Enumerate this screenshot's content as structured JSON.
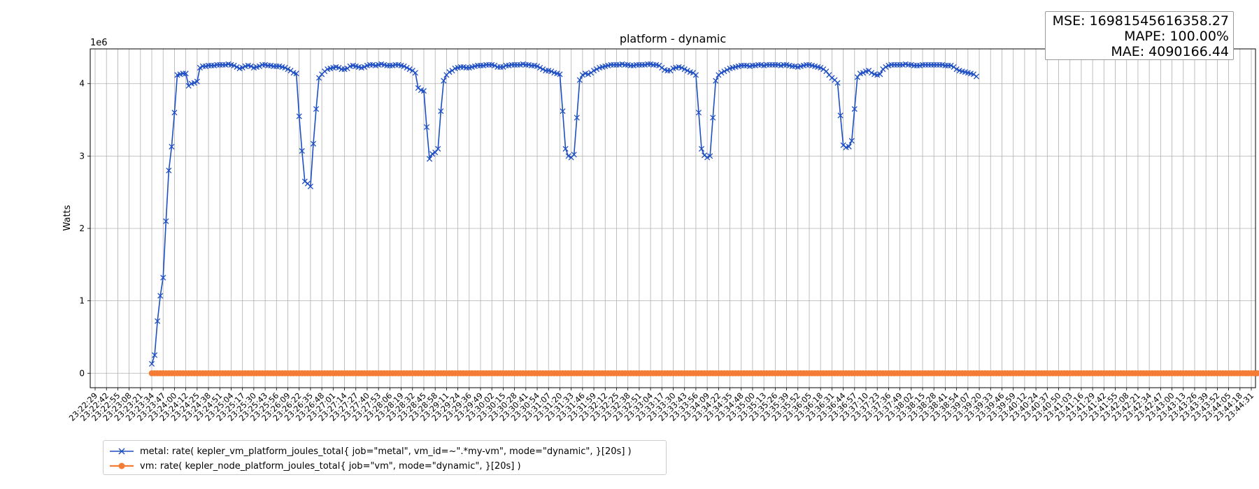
{
  "chart_data": {
    "type": "line",
    "title": "platform - dynamic",
    "xlabel": "",
    "ylabel": "Watts",
    "y_scale_label": "1e6",
    "y_multiplier": 1000000,
    "ylim": [
      -0.2,
      4.48
    ],
    "yticks": [
      0,
      1,
      2,
      3,
      4
    ],
    "grid": true,
    "legend_position": "lower-left, below plot",
    "x_tick_labels": [
      "23:22:29",
      "23:22:42",
      "23:22:55",
      "23:23:08",
      "23:23:21",
      "23:23:34",
      "23:23:47",
      "23:24:00",
      "23:24:12",
      "23:24:25",
      "23:24:38",
      "23:24:51",
      "23:25:04",
      "23:25:17",
      "23:25:30",
      "23:25:43",
      "23:25:56",
      "23:26:09",
      "23:26:22",
      "23:26:35",
      "23:26:48",
      "23:27:01",
      "23:27:14",
      "23:27:27",
      "23:27:40",
      "23:27:53",
      "23:28:06",
      "23:28:19",
      "23:28:32",
      "23:28:45",
      "23:28:58",
      "23:29:11",
      "23:29:24",
      "23:29:36",
      "23:29:49",
      "23:30:02",
      "23:30:15",
      "23:30:28",
      "23:30:41",
      "23:30:54",
      "23:31:07",
      "23:31:20",
      "23:31:33",
      "23:31:46",
      "23:31:59",
      "23:32:12",
      "23:32:25",
      "23:32:38",
      "23:32:51",
      "23:33:04",
      "23:33:17",
      "23:33:30",
      "23:33:43",
      "23:33:56",
      "23:34:09",
      "23:34:22",
      "23:34:35",
      "23:34:48",
      "23:35:00",
      "23:35:13",
      "23:35:26",
      "23:35:39",
      "23:35:52",
      "23:36:05",
      "23:36:18",
      "23:36:31",
      "23:36:44",
      "23:36:57",
      "23:37:10",
      "23:37:23",
      "23:37:36",
      "23:37:49",
      "23:38:02",
      "23:38:15",
      "23:38:28",
      "23:38:41",
      "23:38:54",
      "23:39:07",
      "23:39:20",
      "23:39:33",
      "23:39:46",
      "23:39:59",
      "23:40:12",
      "23:40:24",
      "23:40:37",
      "23:40:50",
      "23:41:03",
      "23:41:16",
      "23:41:29",
      "23:41:42",
      "23:41:55",
      "23:42:08",
      "23:42:21",
      "23:42:34",
      "23:42:47",
      "23:43:00",
      "23:43:13",
      "23:43:26",
      "23:43:39",
      "23:43:52",
      "23:44:05",
      "23:44:18",
      "23:44:31"
    ],
    "series": [
      {
        "name": "metal: rate( kepler_vm_platform_joules_total{ job=\"metal\", vm_id=~\".*my-vm\", mode=\"dynamic\", }[20s] )",
        "color": "#1f4fc4",
        "marker": "x",
        "x_start_index": 5,
        "x_step": 0.25,
        "values": [
          0.13,
          0.25,
          0.72,
          1.07,
          1.32,
          2.1,
          2.8,
          3.13,
          3.6,
          4.12,
          4.13,
          4.14,
          4.14,
          3.97,
          4.0,
          4.01,
          4.03,
          4.22,
          4.24,
          4.24,
          4.25,
          4.25,
          4.25,
          4.26,
          4.26,
          4.26,
          4.26,
          4.27,
          4.26,
          4.25,
          4.23,
          4.21,
          4.22,
          4.24,
          4.25,
          4.24,
          4.22,
          4.23,
          4.24,
          4.26,
          4.26,
          4.25,
          4.25,
          4.24,
          4.24,
          4.24,
          4.23,
          4.22,
          4.2,
          4.18,
          4.15,
          4.14,
          3.55,
          3.07,
          2.65,
          2.62,
          2.58,
          3.17,
          3.65,
          4.08,
          4.13,
          4.17,
          4.2,
          4.21,
          4.22,
          4.23,
          4.22,
          4.2,
          4.2,
          4.21,
          4.24,
          4.25,
          4.24,
          4.23,
          4.22,
          4.23,
          4.25,
          4.26,
          4.26,
          4.25,
          4.26,
          4.27,
          4.26,
          4.25,
          4.25,
          4.25,
          4.26,
          4.26,
          4.25,
          4.24,
          4.22,
          4.2,
          4.18,
          4.15,
          3.94,
          3.91,
          3.9,
          3.4,
          2.96,
          3.03,
          3.05,
          3.1,
          3.62,
          4.04,
          4.12,
          4.16,
          4.18,
          4.21,
          4.22,
          4.23,
          4.23,
          4.22,
          4.22,
          4.23,
          4.24,
          4.25,
          4.25,
          4.25,
          4.26,
          4.26,
          4.26,
          4.25,
          4.23,
          4.23,
          4.23,
          4.25,
          4.25,
          4.26,
          4.26,
          4.26,
          4.26,
          4.27,
          4.26,
          4.26,
          4.25,
          4.25,
          4.24,
          4.22,
          4.2,
          4.18,
          4.18,
          4.17,
          4.15,
          4.14,
          4.13,
          3.62,
          3.1,
          3.0,
          2.98,
          3.02,
          3.53,
          4.05,
          4.12,
          4.14,
          4.13,
          4.15,
          4.18,
          4.2,
          4.22,
          4.23,
          4.24,
          4.25,
          4.26,
          4.26,
          4.26,
          4.26,
          4.27,
          4.26,
          4.26,
          4.25,
          4.25,
          4.26,
          4.26,
          4.26,
          4.26,
          4.27,
          4.27,
          4.26,
          4.26,
          4.25,
          4.22,
          4.19,
          4.18,
          4.18,
          4.21,
          4.22,
          4.23,
          4.22,
          4.2,
          4.18,
          4.16,
          4.15,
          4.12,
          3.6,
          3.1,
          3.01,
          2.98,
          3.0,
          3.53,
          4.04,
          4.12,
          4.15,
          4.17,
          4.19,
          4.21,
          4.22,
          4.23,
          4.24,
          4.25,
          4.25,
          4.25,
          4.24,
          4.25,
          4.25,
          4.26,
          4.26,
          4.25,
          4.26,
          4.26,
          4.26,
          4.26,
          4.26,
          4.25,
          4.26,
          4.26,
          4.25,
          4.24,
          4.24,
          4.23,
          4.24,
          4.25,
          4.26,
          4.26,
          4.25,
          4.24,
          4.23,
          4.22,
          4.2,
          4.17,
          4.12,
          4.08,
          4.05,
          4.01,
          3.56,
          3.15,
          3.12,
          3.13,
          3.21,
          3.65,
          4.09,
          4.14,
          4.15,
          4.17,
          4.18,
          4.15,
          4.13,
          4.12,
          4.13,
          4.2,
          4.23,
          4.25,
          4.26,
          4.26,
          4.26,
          4.26,
          4.26,
          4.27,
          4.26,
          4.26,
          4.25,
          4.25,
          4.25,
          4.26,
          4.26,
          4.26,
          4.26,
          4.26,
          4.26,
          4.26,
          4.26,
          4.25,
          4.25,
          4.25,
          4.23,
          4.2,
          4.18,
          4.17,
          4.16,
          4.15,
          4.14,
          4.13,
          4.1
        ]
      },
      {
        "name": "vm: rate( kepler_node_platform_joules_total{ job=\"vm\", mode=\"dynamic\", }[20s] )",
        "color": "#f57c35",
        "marker": "o",
        "x_start_index": 5,
        "x_end_index": 103,
        "constant_value": 0
      }
    ]
  },
  "metrics": {
    "mse": "MSE: 16981545616358.27",
    "mape": "MAPE: 100.00%",
    "mae": "MAE: 4090166.44"
  }
}
